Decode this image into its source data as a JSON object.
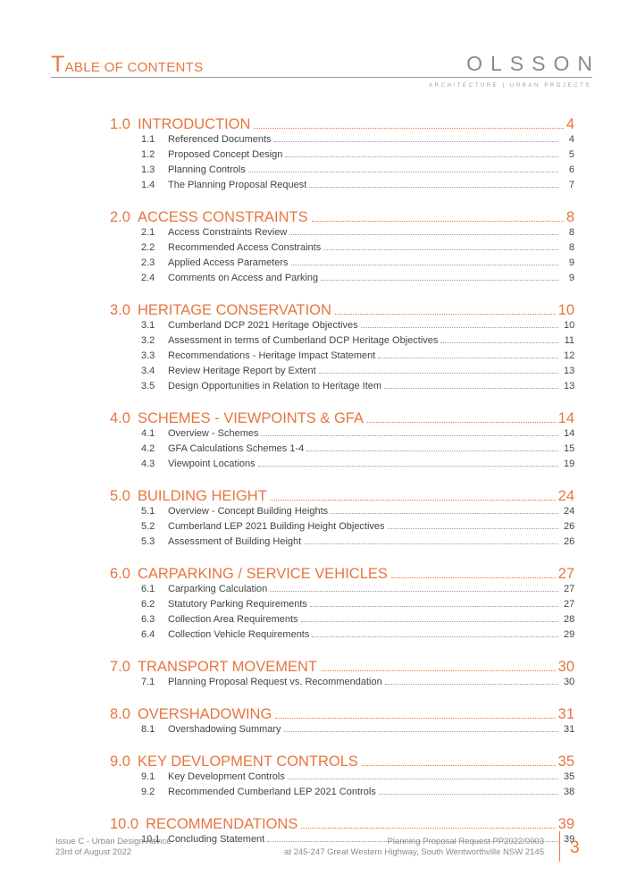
{
  "header": {
    "title_first": "T",
    "title_rest": "ABLE OF CONTENTS",
    "logo": "OLSSON",
    "tagline": "ARCHITECTURE | URBAN PROJECTS"
  },
  "sections": [
    {
      "num": "1.0",
      "title": "INTRODUCTION",
      "page": "4",
      "subs": [
        {
          "num": "1.1",
          "title": "Referenced Documents",
          "page": "4"
        },
        {
          "num": "1.2",
          "title": "Proposed Concept Design",
          "page": "5"
        },
        {
          "num": "1.3",
          "title": "Planning Controls",
          "page": "6"
        },
        {
          "num": "1.4",
          "title": "The Planning Proposal Request",
          "page": "7"
        }
      ]
    },
    {
      "num": "2.0",
      "title": "ACCESS CONSTRAINTS",
      "page": "8",
      "subs": [
        {
          "num": "2.1",
          "title": "Access Constraints Review",
          "page": "8"
        },
        {
          "num": "2.2",
          "title": "Recommended Access Constraints",
          "page": "8"
        },
        {
          "num": "2.3",
          "title": "Applied Access Parameters",
          "page": "9"
        },
        {
          "num": "2.4",
          "title": "Comments on Access and Parking",
          "page": "9"
        }
      ]
    },
    {
      "num": "3.0",
      "title": "HERITAGE CONSERVATION",
      "page": "10",
      "subs": [
        {
          "num": "3.1",
          "title": "Cumberland DCP 2021 Heritage Objectives",
          "page": "10"
        },
        {
          "num": "3.2",
          "title": "Assessment in terms of Cumberland DCP Heritage Objectives",
          "page": "11"
        },
        {
          "num": "3.3",
          "title": "Recommendations - Heritage Impact Statement",
          "page": "12"
        },
        {
          "num": "3.4",
          "title": "Review Heritage Report by Extent",
          "page": "13"
        },
        {
          "num": "3.5",
          "title": "Design Opportunities in Relation to Heritage Item",
          "page": "13"
        }
      ]
    },
    {
      "num": "4.0",
      "title": "SCHEMES - VIEWPOINTS & GFA",
      "page": "14",
      "subs": [
        {
          "num": "4.1",
          "title": "Overview - Schemes",
          "page": "14"
        },
        {
          "num": "4.2",
          "title": "GFA Calculations Schemes 1-4",
          "page": "15"
        },
        {
          "num": "4.3",
          "title": "Viewpoint Locations",
          "page": "19"
        }
      ]
    },
    {
      "num": "5.0",
      "title": "BUILDING HEIGHT",
      "page": "24",
      "subs": [
        {
          "num": "5.1",
          "title": "Overview - Concept Building Heights",
          "page": "24"
        },
        {
          "num": "5.2",
          "title": "Cumberland LEP 2021 Building Height Objectives",
          "page": "26"
        },
        {
          "num": "5.3",
          "title": "Assessment of Building Height",
          "page": "26"
        }
      ]
    },
    {
      "num": "6.0",
      "title": "CARPARKING / SERVICE VEHICLES",
      "page": "27",
      "subs": [
        {
          "num": "6.1",
          "title": "Carparking Calculation",
          "page": "27"
        },
        {
          "num": "6.2",
          "title": "Statutory Parking Requirements",
          "page": "27"
        },
        {
          "num": "6.3",
          "title": "Collection Area Requirements",
          "page": "28"
        },
        {
          "num": "6.4",
          "title": "Collection Vehicle Requirements",
          "page": "29"
        }
      ]
    },
    {
      "num": "7.0",
      "title": "TRANSPORT MOVEMENT",
      "page": "30",
      "subs": [
        {
          "num": "7.1",
          "title": "Planning Proposal Request vs. Recommendation",
          "page": "30"
        }
      ]
    },
    {
      "num": "8.0",
      "title": "OVERSHADOWING",
      "page": "31",
      "subs": [
        {
          "num": "8.1",
          "title": "Overshadowing Summary",
          "page": "31"
        }
      ]
    },
    {
      "num": "9.0",
      "title": "KEY DEVLOPMENT CONTROLS",
      "page": "35",
      "subs": [
        {
          "num": "9.1",
          "title": "Key Development Controls",
          "page": "35"
        },
        {
          "num": "9.2",
          "title": "Recommended Cumberland LEP 2021 Controls",
          "page": "38"
        }
      ]
    },
    {
      "num": "10.0",
      "title": "RECOMMENDATIONS",
      "page": "39",
      "subs": [
        {
          "num": "10.1",
          "title": "Concluding Statement",
          "page": "39"
        }
      ]
    }
  ],
  "footer": {
    "issue": "Issue C - Urban Design Advice",
    "date": "23rd of August 2022",
    "project": "Planning Proposal Request PP2022/0003",
    "address": "at 245-247 Great Western Highway, South Wentworthville NSW 2145",
    "page_number": "3"
  }
}
